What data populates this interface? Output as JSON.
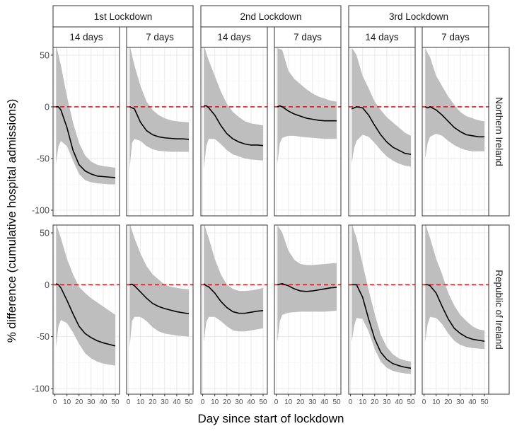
{
  "chart_data": {
    "type": "line",
    "xlabel": "Day since start of lockdown",
    "ylabel": "% difference (cumulative hospital admissions)",
    "xlim": [
      -1.5,
      53.5
    ],
    "ylim": [
      -105.5,
      57.5
    ],
    "x_ticks": [
      0,
      10,
      20,
      30,
      40,
      50
    ],
    "y_ticks": [
      50,
      0,
      -50,
      -100
    ],
    "reference_line": {
      "y": 0,
      "style": "dashed",
      "color": "#E41A1C"
    },
    "colors": {
      "line": "#000000",
      "ribbon": "#BEBEBE",
      "strip": "#FFFFFF",
      "border": "#333333",
      "grid": "#EBEBEB"
    },
    "lockdowns": [
      "1st Lockdown",
      "2nd Lockdown",
      "3rd Lockdown"
    ],
    "windows": [
      "14 days",
      "7 days"
    ],
    "regions": [
      "Northern Ireland",
      "Republic of Ireland"
    ],
    "x": [
      1,
      3,
      5,
      10,
      15,
      20,
      25,
      30,
      35,
      40,
      45,
      50
    ],
    "panels": [
      {
        "region": "Northern Ireland",
        "lockdown": "1st Lockdown",
        "window": "14 days",
        "mean": [
          0,
          0,
          -3,
          -20,
          -42,
          -56,
          -62,
          -65,
          -67,
          -67.5,
          -68,
          -68.5
        ],
        "lower": [
          -55,
          -38,
          -33,
          -38,
          -52,
          -65,
          -71,
          -73,
          -74,
          -74.5,
          -75,
          -75
        ],
        "upper": [
          60,
          50,
          40,
          10,
          -15,
          -35,
          -47,
          -53,
          -56,
          -57.5,
          -58,
          -59
        ]
      },
      {
        "region": "Northern Ireland",
        "lockdown": "1st Lockdown",
        "window": "7 days",
        "mean": [
          0,
          -1,
          -2,
          -15,
          -23,
          -27,
          -29,
          -30,
          -30.5,
          -31,
          -31,
          -31.5
        ],
        "lower": [
          -60,
          -35,
          -31,
          -33,
          -38,
          -41,
          -42.5,
          -43,
          -43.5,
          -43.5,
          -43.5,
          -43.5
        ],
        "upper": [
          60,
          50,
          40,
          20,
          5,
          -3,
          -8,
          -11,
          -13,
          -14,
          -14.5,
          -15
        ]
      },
      {
        "region": "Northern Ireland",
        "lockdown": "2nd Lockdown",
        "window": "14 days",
        "mean": [
          1,
          1,
          -1,
          -8,
          -18,
          -26,
          -31,
          -34,
          -36,
          -37,
          -37,
          -37.5
        ],
        "lower": [
          -60,
          -38,
          -31,
          -31,
          -36,
          -42,
          -46,
          -48,
          -50,
          -51,
          -51.5,
          -52
        ],
        "upper": [
          60,
          52,
          45,
          30,
          15,
          3,
          -5,
          -10,
          -14,
          -16,
          -17,
          -18
        ]
      },
      {
        "region": "Northern Ireland",
        "lockdown": "2nd Lockdown",
        "window": "7 days",
        "mean": [
          0,
          1,
          0,
          -4,
          -7,
          -9,
          -11,
          -12,
          -13,
          -13.5,
          -13.5,
          -13.5
        ],
        "lower": [
          -55,
          -35,
          -30,
          -28,
          -28,
          -29,
          -29.5,
          -30,
          -30.5,
          -31,
          -31,
          -31
        ],
        "upper": [
          57,
          56,
          55,
          35,
          27,
          22,
          17,
          13,
          10,
          8,
          6,
          5
        ]
      },
      {
        "region": "Northern Ireland",
        "lockdown": "3rd Lockdown",
        "window": "14 days",
        "mean": [
          -2,
          -1,
          0,
          -1,
          -8,
          -18,
          -27,
          -34,
          -39,
          -42,
          -45,
          -46
        ],
        "lower": [
          -55,
          -40,
          -33,
          -27,
          -29,
          -35,
          -42,
          -48,
          -52,
          -55,
          -57,
          -58
        ],
        "upper": [
          57,
          54,
          50,
          30,
          18,
          5,
          -3,
          -10,
          -15,
          -20,
          -25,
          -28
        ]
      },
      {
        "region": "Northern Ireland",
        "lockdown": "3rd Lockdown",
        "window": "7 days",
        "mean": [
          0,
          -1,
          0,
          -3,
          -8,
          -14,
          -20,
          -24,
          -27,
          -28,
          -29,
          -29
        ],
        "lower": [
          -50,
          -35,
          -29,
          -26,
          -28,
          -33,
          -37,
          -40,
          -42,
          -43,
          -43,
          -43
        ],
        "upper": [
          57,
          52,
          48,
          30,
          20,
          10,
          2,
          -5,
          -9,
          -11,
          -13,
          -14
        ]
      },
      {
        "region": "Republic of Ireland",
        "lockdown": "1st Lockdown",
        "window": "14 days",
        "mean": [
          1,
          0,
          -3,
          -15,
          -28,
          -40,
          -47,
          -51,
          -54,
          -56,
          -57.5,
          -59
        ],
        "lower": [
          -60,
          -40,
          -34,
          -37,
          -46,
          -57,
          -66,
          -71,
          -74,
          -76,
          -77,
          -78
        ],
        "upper": [
          60,
          52,
          45,
          25,
          10,
          -2,
          -8,
          -13,
          -17,
          -21,
          -25,
          -29
        ]
      },
      {
        "region": "Republic of Ireland",
        "lockdown": "1st Lockdown",
        "window": "7 days",
        "mean": [
          0,
          0.5,
          -1,
          -7,
          -13,
          -18,
          -21,
          -23,
          -24.5,
          -26,
          -27,
          -28
        ],
        "lower": [
          -60,
          -35,
          -31,
          -31,
          -35,
          -41,
          -45,
          -47,
          -48,
          -49,
          -49.5,
          -50
        ],
        "upper": [
          60,
          52,
          45,
          30,
          18,
          10,
          5,
          0,
          -2,
          -3,
          -4,
          -4.5
        ]
      },
      {
        "region": "Republic of Ireland",
        "lockdown": "2nd Lockdown",
        "window": "14 days",
        "mean": [
          1,
          -1,
          -2,
          -8,
          -16,
          -22,
          -26,
          -27.5,
          -27.5,
          -26.5,
          -25.5,
          -25
        ],
        "lower": [
          -55,
          -36,
          -31,
          -31,
          -35,
          -40,
          -44,
          -45,
          -45,
          -44,
          -43,
          -42
        ],
        "upper": [
          60,
          52,
          45,
          25,
          10,
          0,
          -4,
          -6,
          -6,
          -5.5,
          -4.5,
          -3
        ]
      },
      {
        "region": "Republic of Ireland",
        "lockdown": "2nd Lockdown",
        "window": "7 days",
        "mean": [
          0,
          0.5,
          1,
          -1,
          -4,
          -6,
          -6.5,
          -6,
          -5,
          -4,
          -3,
          -2.5
        ],
        "lower": [
          -55,
          -35,
          -29,
          -27,
          -26.5,
          -26,
          -26,
          -26,
          -26,
          -26,
          -25.5,
          -25
        ],
        "upper": [
          57,
          54,
          50,
          33,
          24,
          20,
          19,
          19,
          19.5,
          20,
          20.5,
          21
        ]
      },
      {
        "region": "Republic of Ireland",
        "lockdown": "3rd Lockdown",
        "window": "14 days",
        "mean": [
          0,
          0,
          0,
          -12,
          -33,
          -52,
          -65,
          -72,
          -76,
          -78,
          -79.5,
          -80.5
        ],
        "lower": [
          -55,
          -40,
          -32,
          -33,
          -45,
          -62,
          -74,
          -80,
          -83,
          -84.5,
          -85.5,
          -86
        ],
        "upper": [
          60,
          52,
          45,
          20,
          -5,
          -28,
          -48,
          -60,
          -67,
          -71,
          -73,
          -74
        ]
      },
      {
        "region": "Republic of Ireland",
        "lockdown": "3rd Lockdown",
        "window": "7 days",
        "mean": [
          0,
          0,
          -1,
          -8,
          -21,
          -33,
          -42,
          -47,
          -50.5,
          -52.5,
          -53.5,
          -54.5
        ],
        "lower": [
          -55,
          -38,
          -31,
          -32,
          -38,
          -47,
          -54,
          -58,
          -60,
          -61,
          -61.5,
          -62
        ],
        "upper": [
          60,
          52,
          45,
          25,
          10,
          -8,
          -20,
          -29,
          -35,
          -40,
          -43,
          -44
        ]
      }
    ]
  }
}
